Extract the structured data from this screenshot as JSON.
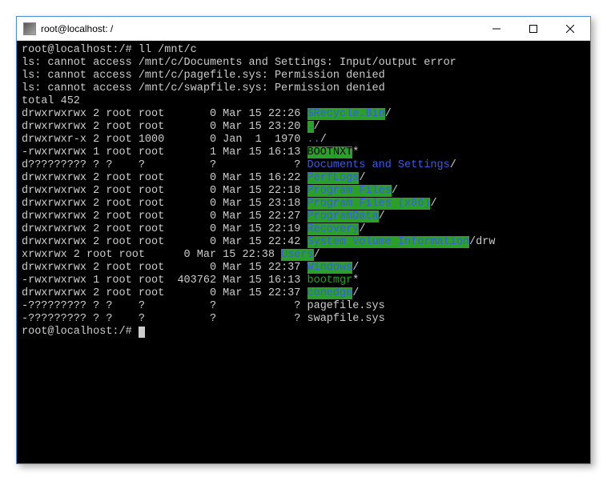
{
  "colors": {
    "window_border": "#4a90d9",
    "terminal_bg": "#000000",
    "text_default": "#cccccc",
    "text_cyan": "#18e0e0",
    "text_blue": "#3a5be5",
    "highlight_green_bg": "#2aa02a",
    "highlight_green_txt": "#2aa02a"
  },
  "titlebar": {
    "title": "root@localhost: /",
    "min_label": "—",
    "max_label": "▢",
    "close_label": "✕"
  },
  "prompt": {
    "text": "root@localhost:/#",
    "command": "ll /mnt/c"
  },
  "errors": {
    "e1": "ls: cannot access /mnt/c/Documents and Settings: Input/output error",
    "e2": "ls: cannot access /mnt/c/pagefile.sys: Permission denied",
    "e3": "ls: cannot access /mnt/c/swapfile.sys: Permission denied"
  },
  "total": "total 452",
  "rows": [
    {
      "perms": "drwxrwxrwx 2 root root",
      "size": "      0",
      "date": "Mar 15 22:26",
      "name": "$Recycle.Bin",
      "suffix": "/",
      "style": "green-bg"
    },
    {
      "perms": "drwxrwxrwx 2 root root",
      "size": "      0",
      "date": "Mar 15 23:20",
      "name": ".",
      "suffix": "/",
      "style": "green-bg"
    },
    {
      "perms": "drwxrwxr-x 2 root 1000",
      "size": "      0",
      "date": "Jan  1  1970",
      "name": "..",
      "suffix": "/",
      "style": "dblue"
    },
    {
      "perms": "-rwxrwxrwx 1 root root",
      "size": "      1",
      "date": "Mar 15 16:13",
      "name": "BOOTNXT",
      "suffix": "*",
      "style": "green-bg-black"
    },
    {
      "perms": "d????????? ? ?    ?   ",
      "size": "      ?",
      "date": "           ?",
      "name": "Documents and Settings",
      "suffix": "/",
      "style": "dblue"
    },
    {
      "perms": "drwxrwxrwx 2 root root",
      "size": "      0",
      "date": "Mar 15 16:22",
      "name": "PerfLogs",
      "suffix": "/",
      "style": "green-bg"
    },
    {
      "perms": "drwxrwxrwx 2 root root",
      "size": "      0",
      "date": "Mar 15 22:18",
      "name": "Program Files",
      "suffix": "/",
      "style": "green-bg"
    },
    {
      "perms": "drwxrwxrwx 2 root root",
      "size": "      0",
      "date": "Mar 15 23:18",
      "name": "Program Files (x86)",
      "suffix": "/",
      "style": "green-bg"
    },
    {
      "perms": "drwxrwxrwx 2 root root",
      "size": "      0",
      "date": "Mar 15 22:27",
      "name": "ProgramData",
      "suffix": "/",
      "style": "green-bg"
    },
    {
      "perms": "drwxrwxrwx 2 root root",
      "size": "      0",
      "date": "Mar 15 22:19",
      "name": "Recovery",
      "suffix": "/",
      "style": "green-bg"
    },
    {
      "perms": "drwxrwxrwx 2 root root",
      "size": "      0",
      "date": "Mar 15 22:42",
      "name": "System Volume Information",
      "suffix": "/",
      "style": "green-bg",
      "trail": "drw"
    }
  ],
  "wrap": {
    "perms": "xrwxrwx 2 root root",
    "size": "     0",
    "date": "Mar 15 22:38",
    "name": "Users",
    "suffix": "/",
    "style": "green-bg"
  },
  "rows2": [
    {
      "perms": "drwxrwxrwx 2 root root",
      "size": "      0",
      "date": "Mar 15 22:37",
      "name": "Windows",
      "suffix": "/",
      "style": "green-bg"
    },
    {
      "perms": "-rwxrwxrwx 1 root root",
      "size": " 403762",
      "date": "Mar 15 16:13",
      "name": "bootmgr",
      "suffix": "*",
      "style": "green-txt"
    },
    {
      "perms": "drwxrwxrwx 2 root root",
      "size": "      0",
      "date": "Mar 15 22:37",
      "name": "conedge",
      "suffix": "/",
      "style": "green-bg"
    },
    {
      "perms": "-????????? ? ?    ?   ",
      "size": "      ?",
      "date": "           ?",
      "name": "pagefile.sys",
      "suffix": "",
      "style": "white"
    },
    {
      "perms": "-????????? ? ?    ?   ",
      "size": "      ?",
      "date": "           ?",
      "name": "swapfile.sys",
      "suffix": "",
      "style": "white"
    }
  ],
  "prompt2": {
    "text": "root@localhost:/#"
  }
}
